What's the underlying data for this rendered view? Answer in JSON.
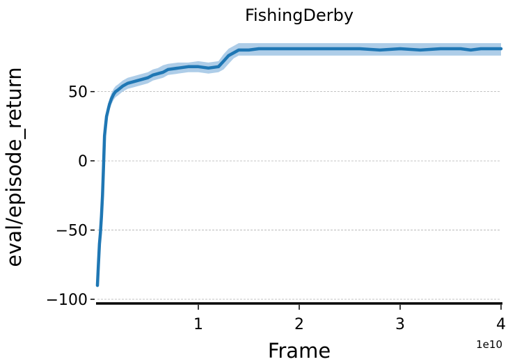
{
  "chart_data": {
    "type": "line",
    "title": "FishingDerby",
    "xlabel": "Frame",
    "ylabel": "eval/episode_return",
    "x_scale_label": "1e10",
    "xlim": [
      0,
      40000000000
    ],
    "ylim": [
      -103,
      85
    ],
    "x_ticks": [
      10000000000,
      20000000000,
      30000000000,
      40000000000
    ],
    "x_tick_labels": [
      "1",
      "2",
      "3",
      "4"
    ],
    "y_ticks": [
      -100,
      -50,
      0,
      50
    ],
    "y_tick_labels": [
      "−100",
      "−50",
      "0",
      "50"
    ],
    "grid": "horizontal-dashed",
    "colors": {
      "line": "#1f77b4",
      "band": "#aecde8"
    },
    "series": [
      {
        "x": [
          0,
          100000000,
          200000000,
          300000000,
          400000000,
          500000000,
          600000000,
          700000000,
          800000000,
          900000000,
          1000000000,
          1100000000,
          1200000000,
          1400000000,
          1600000000,
          1800000000,
          2000000000,
          2500000000,
          3000000000,
          3500000000,
          4000000000,
          4500000000,
          5000000000,
          5500000000,
          6000000000,
          6500000000,
          7000000000,
          8000000000,
          9000000000,
          10000000000,
          11000000000,
          12000000000,
          12500000000,
          13000000000,
          13500000000,
          14000000000,
          15000000000,
          16000000000,
          18000000000,
          20000000000,
          22000000000,
          24000000000,
          26000000000,
          28000000000,
          30000000000,
          32000000000,
          34000000000,
          36000000000,
          37000000000,
          38000000000,
          40000000000
        ],
        "y": [
          -90,
          -75,
          -60,
          -52,
          -40,
          -25,
          -5,
          18,
          25,
          32,
          35,
          38,
          41,
          45,
          48,
          50,
          51,
          54,
          56,
          57,
          58,
          59,
          60,
          62,
          63,
          64,
          66,
          67,
          68,
          68,
          67,
          68,
          72,
          76,
          78,
          80,
          80,
          81,
          81,
          81,
          81,
          81,
          81,
          80,
          81,
          80,
          81,
          81,
          80,
          81,
          81
        ],
        "band_upper": [
          -86,
          -70,
          -55,
          -47,
          -35,
          -20,
          0,
          22,
          30,
          36,
          39,
          42,
          45,
          49,
          52,
          54,
          55,
          58,
          60,
          61,
          62,
          63,
          64,
          66,
          67,
          69,
          70,
          71,
          71,
          72,
          71,
          72,
          77,
          81,
          83,
          85,
          85,
          85,
          85,
          85,
          85,
          85,
          85,
          85,
          85,
          85,
          85,
          85,
          85,
          85,
          85
        ],
        "band_lower": [
          -92,
          -78,
          -63,
          -55,
          -44,
          -30,
          -10,
          14,
          20,
          28,
          31,
          34,
          37,
          41,
          44,
          46,
          47,
          50,
          52,
          53,
          54,
          55,
          56,
          58,
          59,
          60,
          62,
          63,
          64,
          64,
          63,
          64,
          66,
          70,
          74,
          76,
          76,
          76,
          76,
          76,
          76,
          76,
          76,
          76,
          76,
          76,
          76,
          76,
          76,
          76,
          76
        ]
      }
    ]
  }
}
